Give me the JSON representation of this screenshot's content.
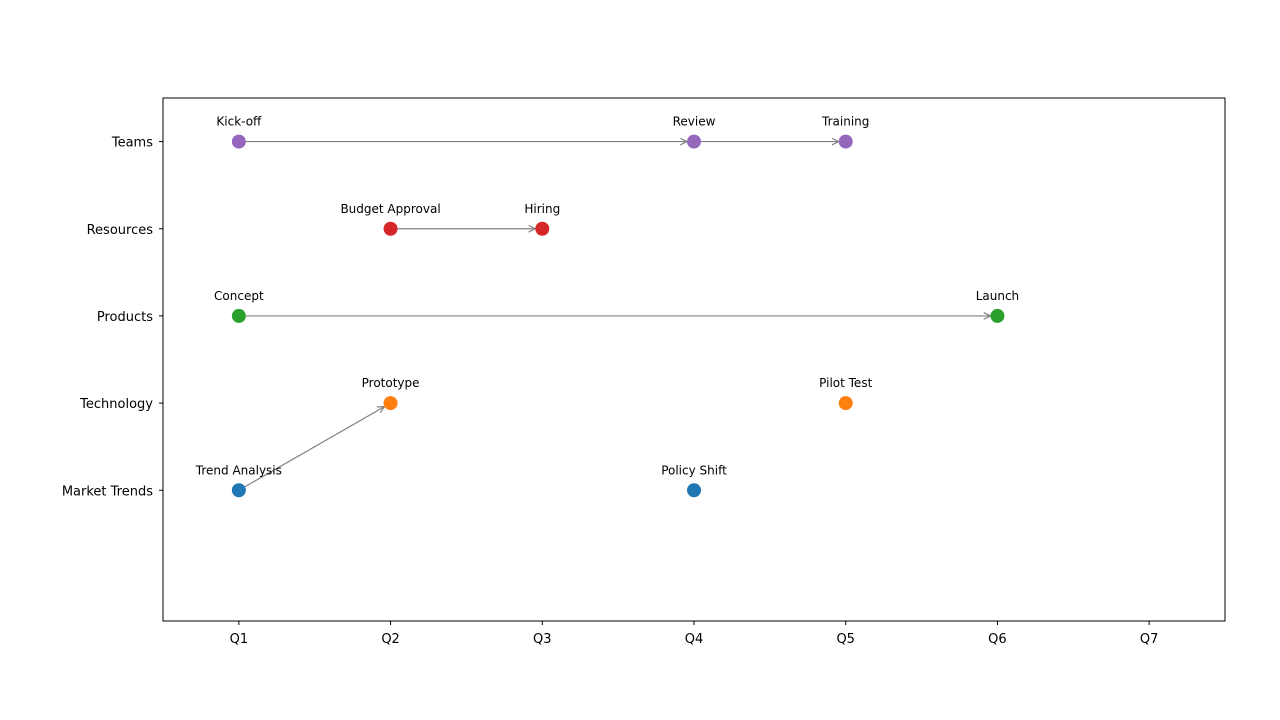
{
  "chart_data": {
    "type": "scatter",
    "title": "",
    "xlabel": "",
    "ylabel": "",
    "x_categories": [
      "Q1",
      "Q2",
      "Q3",
      "Q4",
      "Q5",
      "Q6",
      "Q7"
    ],
    "y_categories": [
      "Market Trends",
      "Technology",
      "Products",
      "Resources",
      "Teams"
    ],
    "xlim": [
      0.5,
      7.5
    ],
    "ylim": [
      -0.5,
      5.5
    ],
    "grid": false,
    "legend": "none",
    "series": [
      {
        "category": "Market Trends",
        "color": "#1f77b4",
        "points": [
          {
            "x": "Q1",
            "label": "Trend Analysis"
          },
          {
            "x": "Q4",
            "label": "Policy Shift"
          }
        ]
      },
      {
        "category": "Technology",
        "color": "#ff7f0e",
        "points": [
          {
            "x": "Q2",
            "label": "Prototype"
          },
          {
            "x": "Q5",
            "label": "Pilot Test"
          }
        ]
      },
      {
        "category": "Products",
        "color": "#2ca02c",
        "points": [
          {
            "x": "Q1",
            "label": "Concept"
          },
          {
            "x": "Q6",
            "label": "Launch"
          }
        ]
      },
      {
        "category": "Resources",
        "color": "#d62728",
        "points": [
          {
            "x": "Q2",
            "label": "Budget Approval"
          },
          {
            "x": "Q3",
            "label": "Hiring"
          }
        ]
      },
      {
        "category": "Teams",
        "color": "#9467bd",
        "points": [
          {
            "x": "Q1",
            "label": "Kick-off"
          },
          {
            "x": "Q4",
            "label": "Review"
          },
          {
            "x": "Q5",
            "label": "Training"
          }
        ]
      }
    ],
    "arrows": [
      {
        "from": {
          "x": "Q1",
          "y": "Market Trends"
        },
        "to": {
          "x": "Q2",
          "y": "Technology"
        }
      },
      {
        "from": {
          "x": "Q1",
          "y": "Products"
        },
        "to": {
          "x": "Q6",
          "y": "Products"
        }
      },
      {
        "from": {
          "x": "Q2",
          "y": "Resources"
        },
        "to": {
          "x": "Q3",
          "y": "Resources"
        }
      },
      {
        "from": {
          "x": "Q1",
          "y": "Teams"
        },
        "to": {
          "x": "Q4",
          "y": "Teams"
        }
      },
      {
        "from": {
          "x": "Q4",
          "y": "Teams"
        },
        "to": {
          "x": "Q5",
          "y": "Teams"
        }
      }
    ],
    "arrow_color": "#808080"
  }
}
